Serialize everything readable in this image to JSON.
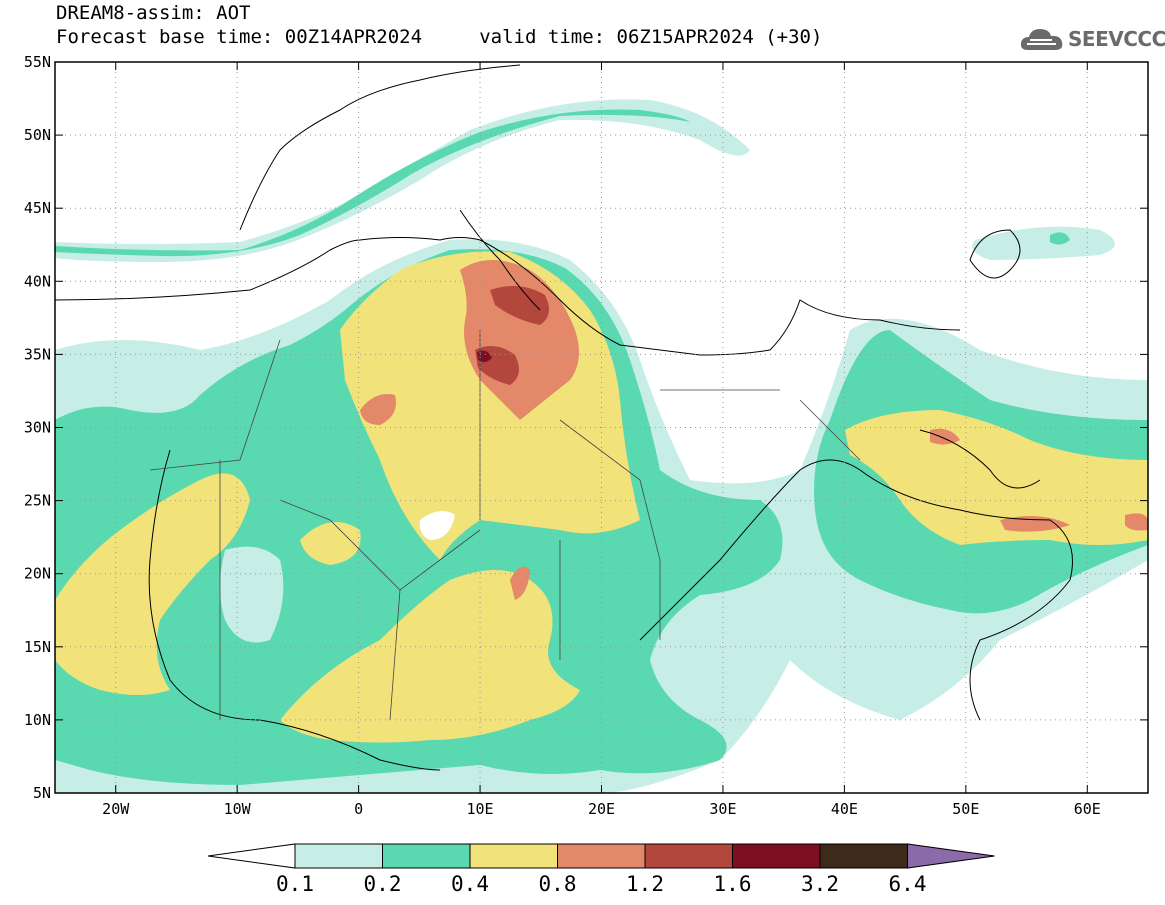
{
  "header": {
    "title_line1": "DREAM8-assim: AOT",
    "title_line2": "Forecast base time: 00Z14APR2024     valid time: 06Z15APR2024 (+30)",
    "logo_text": "SEEVCCC",
    "logo_icon": "cloud-icon"
  },
  "map": {
    "lat_labels": [
      "55N",
      "50N",
      "45N",
      "40N",
      "35N",
      "30N",
      "25N",
      "20N",
      "15N",
      "10N",
      "5N"
    ],
    "lon_labels": [
      "20W",
      "10W",
      "0",
      "10E",
      "20E",
      "30E",
      "40E",
      "50E",
      "60E"
    ],
    "lat_range": [
      5,
      55
    ],
    "lon_range": [
      -25,
      65
    ],
    "gridlines": "dotted"
  },
  "colorbar": {
    "labels": [
      "0.1",
      "0.2",
      "0.4",
      "0.8",
      "1.2",
      "1.6",
      "3.2",
      "6.4"
    ],
    "colors": [
      "#c7eee6",
      "#5ad9b1",
      "#f2e27a",
      "#e4886a",
      "#b3473d",
      "#7e0f23",
      "#3d2a1a"
    ],
    "under_color": "#ffffff",
    "over_color": "#8a6aa8"
  },
  "colors": {
    "c1": "#c7eee6",
    "c2": "#5ad9b1",
    "c3": "#f2e27a",
    "c4": "#e4886a",
    "c5": "#b3473d",
    "c6": "#7e0f23",
    "c7": "#3d2a1a"
  }
}
